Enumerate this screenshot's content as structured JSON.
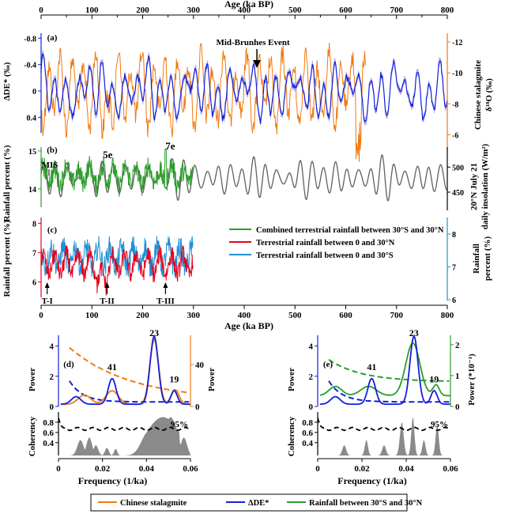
{
  "figure": {
    "top_axis_label": "Age (ka BP)",
    "mid_axis_label": "Age (ka BP)",
    "event_label": "Mid-Brunhes Event",
    "mis_label": "MIS",
    "mis_stages": [
      "5e",
      "7e"
    ],
    "terminations": [
      "T-I",
      "T-II",
      "T-III"
    ],
    "panel_letters": [
      "(a)",
      "(b)",
      "(c)",
      "(d)",
      "(e)"
    ],
    "legend_top": [
      {
        "label": "Combined terrestrial rainfall between 30°S and 30°N",
        "color": "#2a9d2a"
      },
      {
        "label": "Terrestrial rainfall between 0 and 30°N",
        "color": "#e8001c"
      },
      {
        "label": "Terrestrial rainfall between 0 and 30°S",
        "color": "#1f8fd6"
      }
    ],
    "legend_bottom": [
      {
        "label": "Chinese stalagmite",
        "color": "#f07a10"
      },
      {
        "label": "ΔDE*",
        "color": "#1420d8"
      },
      {
        "label": "Rainfall between 30°S and 30°N",
        "color": "#2a9d2a"
      }
    ],
    "colors": {
      "orange": "#f07a10",
      "blue": "#1420d8",
      "lightblue": "#8c8cf0",
      "green": "#2a9d2a",
      "red": "#e8001c",
      "cyan": "#1f8fd6",
      "grey": "#606060",
      "fill": "#8a8a8a"
    }
  },
  "chart_data": [
    {
      "id": "a",
      "type": "line",
      "x_axis": {
        "label": "Age (ka BP)",
        "range": [
          0,
          800
        ],
        "ticks": [
          "0",
          "100",
          "200",
          "300",
          "400",
          "500",
          "600",
          "700",
          "800"
        ]
      },
      "y_left": {
        "label": "ΔDE* (‰)",
        "range": [
          0.6,
          -0.9
        ],
        "ticks": [
          "-0.8",
          "-0.4",
          "0",
          "0.4"
        ]
      },
      "y_right": {
        "label": "Chinese stalagmite δ¹⁸O (‰)",
        "range": [
          -5,
          -12
        ],
        "ticks": [
          "-12",
          "-10",
          "-8",
          "-6"
        ]
      },
      "series": [
        {
          "name": "Chinese stalagmite",
          "x_range": [
            0,
            640
          ],
          "color": "orange"
        },
        {
          "name": "ΔDE*",
          "x_range": [
            0,
            800
          ],
          "color": "blue"
        }
      ],
      "annotation": {
        "text": "Mid-Brunhes Event",
        "x": 425
      }
    },
    {
      "id": "b",
      "type": "line",
      "x_axis": {
        "range": [
          0,
          800
        ]
      },
      "y_left": {
        "label": "Rainfall percent (%)",
        "range": [
          13.6,
          15.1
        ],
        "ticks": [
          "14",
          "15"
        ]
      },
      "y_right": {
        "label": "20°N July 21 daily insolation (W/m²)",
        "range": [
          420,
          540
        ],
        "ticks": [
          "450",
          "500"
        ]
      },
      "series": [
        {
          "name": "Combined terrestrial rainfall between 30°S and 30°N",
          "x_range": [
            0,
            300
          ],
          "color": "green"
        },
        {
          "name": "20°N July 21 daily insolation",
          "x_range": [
            0,
            800
          ],
          "color": "grey"
        }
      ],
      "stage_markers": [
        {
          "label": "5e",
          "x": 125
        },
        {
          "label": "7e",
          "x": 245
        }
      ]
    },
    {
      "id": "c",
      "type": "line",
      "x_axis": {
        "label": "Age (ka BP)",
        "range": [
          0,
          800
        ],
        "ticks": [
          "0",
          "100",
          "200",
          "300",
          "400",
          "500",
          "600",
          "700",
          "800"
        ]
      },
      "y_left": {
        "label": "Rainfall percent (%)",
        "range": [
          5.5,
          8.2
        ],
        "ticks": [
          "6",
          "7",
          "8"
        ]
      },
      "y_right": {
        "label": "Rainfall percent (%)",
        "range": [
          6,
          8.6
        ],
        "ticks": [
          "6",
          "7",
          "8"
        ]
      },
      "series": [
        {
          "name": "Terrestrial rainfall between 0 and 30°N",
          "x_range": [
            0,
            300
          ],
          "color": "red"
        },
        {
          "name": "Terrestrial rainfall between 0 and 30°S",
          "x_range": [
            0,
            300
          ],
          "color": "cyan"
        }
      ],
      "terminations": [
        {
          "label": "T-I",
          "x": 12
        },
        {
          "label": "T-II",
          "x": 130
        },
        {
          "label": "T-III",
          "x": 245
        }
      ]
    },
    {
      "id": "d",
      "type": "line",
      "x_axis": {
        "label": "Frequency (1/ka)",
        "range": [
          0,
          0.06
        ],
        "ticks": [
          "0",
          "0.02",
          "0.04",
          "0.06"
        ]
      },
      "y_left": {
        "label": "Power",
        "range": [
          0,
          4.5
        ],
        "ticks": [
          "0",
          "2",
          "4"
        ]
      },
      "y_right": {
        "label": "Power",
        "range": [
          0,
          65
        ],
        "ticks": [
          "0",
          "40"
        ]
      },
      "coherency": {
        "label": "Coherency",
        "range": [
          0.15,
          1.0
        ],
        "ticks": [
          "0.4",
          "0.6",
          "0.8"
        ],
        "confidence_label": "95%",
        "confidence_level": 0.67
      },
      "peak_labels": [
        {
          "label": "23",
          "x": 0.0435
        },
        {
          "label": "41",
          "x": 0.0244
        },
        {
          "label": "19",
          "x": 0.0526
        }
      ],
      "series": [
        {
          "name": "Chinese stalagmite",
          "color": "orange"
        },
        {
          "name": "ΔDE*",
          "color": "blue"
        }
      ]
    },
    {
      "id": "e",
      "type": "line",
      "x_axis": {
        "label": "Frequency (1/ka)",
        "range": [
          0,
          0.06
        ],
        "ticks": [
          "0",
          "0.02",
          "0.04",
          "0.06"
        ]
      },
      "y_left": {
        "label": "Power",
        "range": [
          0,
          4.5
        ],
        "ticks": [
          "0",
          "2",
          "4"
        ]
      },
      "y_right": {
        "label": "Power (*10⁻¹)",
        "range": [
          0,
          2.2
        ],
        "ticks": [
          "0",
          "1",
          "2"
        ]
      },
      "coherency": {
        "label": "Coherency",
        "range": [
          0.15,
          1.0
        ],
        "ticks": [
          "0.4",
          "0.6",
          "0.8"
        ],
        "confidence_label": "95%",
        "confidence_level": 0.67
      },
      "peak_labels": [
        {
          "label": "23",
          "x": 0.0435
        },
        {
          "label": "41",
          "x": 0.0244
        },
        {
          "label": "19",
          "x": 0.0526
        }
      ],
      "series": [
        {
          "name": "Rainfall between 30°S and 30°N",
          "color": "green"
        },
        {
          "name": "ΔDE*",
          "color": "blue"
        }
      ]
    }
  ]
}
